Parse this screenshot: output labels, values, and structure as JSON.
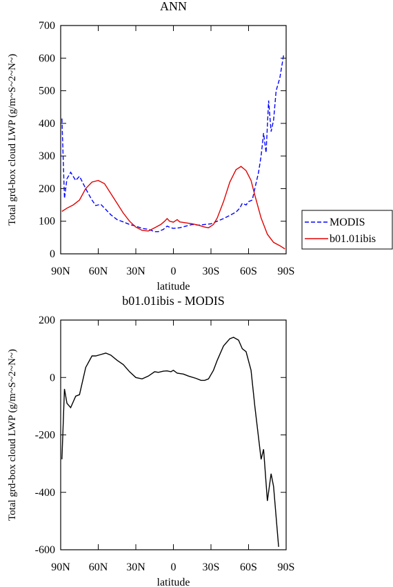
{
  "chart_data": [
    {
      "type": "line",
      "title": "ANN",
      "xlabel": "latitude",
      "ylabel": "Total grd-box cloud LWP (g/m~S~2~N~)",
      "xlim": [
        90,
        -90
      ],
      "xticks": [
        {
          "value": 90,
          "label": "90N"
        },
        {
          "value": 60,
          "label": "60N"
        },
        {
          "value": 30,
          "label": "30N"
        },
        0,
        {
          "value": -30,
          "label": "30S"
        },
        {
          "value": -60,
          "label": "60S"
        },
        {
          "value": -90,
          "label": "90S"
        }
      ],
      "ylim": [
        0,
        700
      ],
      "yticks": [
        0,
        100,
        200,
        300,
        400,
        500,
        600,
        700
      ],
      "legend": "right",
      "series": [
        {
          "name": "MODIS",
          "color": "#0000ff",
          "line_style": "dashed",
          "x": [
            89,
            87,
            85,
            82,
            78,
            75,
            72,
            68,
            65,
            62,
            58,
            55,
            50,
            45,
            40,
            35,
            30,
            25,
            20,
            15,
            12,
            8,
            5,
            2,
            0,
            -5,
            -10,
            -15,
            -20,
            -25,
            -30,
            -35,
            -40,
            -45,
            -50,
            -53,
            -55,
            -58,
            -60,
            -63,
            -65,
            -68,
            -70,
            -72,
            -74,
            -76,
            -78,
            -80,
            -82,
            -85,
            -88
          ],
          "values": [
            415,
            170,
            230,
            250,
            225,
            238,
            215,
            185,
            165,
            148,
            152,
            140,
            120,
            105,
            98,
            90,
            85,
            78,
            75,
            68,
            68,
            75,
            85,
            80,
            78,
            80,
            85,
            90,
            88,
            90,
            92,
            100,
            108,
            118,
            128,
            140,
            155,
            150,
            160,
            165,
            200,
            250,
            300,
            370,
            310,
            470,
            375,
            410,
            500,
            540,
            610
          ]
        },
        {
          "name": "b01.01ibis",
          "color": "#e00000",
          "line_style": "solid",
          "x": [
            89,
            85,
            80,
            75,
            70,
            65,
            60,
            55,
            50,
            45,
            40,
            35,
            30,
            25,
            20,
            15,
            10,
            7,
            5,
            3,
            0,
            -3,
            -5,
            -10,
            -15,
            -20,
            -25,
            -28,
            -32,
            -35,
            -40,
            -45,
            -50,
            -54,
            -58,
            -62,
            -65,
            -70,
            -75,
            -80,
            -85,
            -89
          ],
          "values": [
            130,
            140,
            150,
            165,
            200,
            220,
            225,
            215,
            185,
            155,
            125,
            100,
            82,
            72,
            70,
            80,
            90,
            100,
            108,
            100,
            97,
            105,
            98,
            95,
            92,
            88,
            82,
            80,
            90,
            110,
            160,
            220,
            258,
            268,
            255,
            225,
            180,
            110,
            60,
            35,
            25,
            15
          ]
        }
      ]
    },
    {
      "type": "line",
      "title": "b01.01ibis - MODIS",
      "xlabel": "latitude",
      "ylabel": "Total grd-box cloud LWP (g/m~S~2~N~)",
      "xlim": [
        90,
        -90
      ],
      "xticks": [
        {
          "value": 90,
          "label": "90N"
        },
        {
          "value": 60,
          "label": "60N"
        },
        {
          "value": 30,
          "label": "30N"
        },
        0,
        {
          "value": -30,
          "label": "30S"
        },
        {
          "value": -60,
          "label": "60S"
        },
        {
          "value": -90,
          "label": "90S"
        }
      ],
      "ylim": [
        -600,
        200
      ],
      "yticks": [
        -600,
        -400,
        -200,
        0,
        200
      ],
      "series": [
        {
          "color": "#000000",
          "line_style": "solid",
          "x": [
            89,
            87,
            85,
            82,
            78,
            75,
            70,
            65,
            62,
            58,
            54,
            50,
            45,
            40,
            35,
            30,
            25,
            20,
            15,
            12,
            8,
            5,
            2,
            0,
            -3,
            -8,
            -12,
            -18,
            -22,
            -25,
            -28,
            -32,
            -35,
            -40,
            -45,
            -48,
            -52,
            -55,
            -58,
            -62,
            -65,
            -70,
            -72,
            -75,
            -78,
            -80,
            -84
          ],
          "values": [
            -285,
            -40,
            -90,
            -105,
            -65,
            -60,
            35,
            75,
            75,
            80,
            85,
            78,
            60,
            45,
            20,
            0,
            -5,
            5,
            20,
            18,
            22,
            23,
            20,
            25,
            15,
            12,
            5,
            -3,
            -10,
            -10,
            -5,
            25,
            60,
            110,
            135,
            140,
            130,
            100,
            90,
            25,
            -100,
            -285,
            -250,
            -430,
            -335,
            -380,
            -590
          ]
        }
      ]
    }
  ]
}
